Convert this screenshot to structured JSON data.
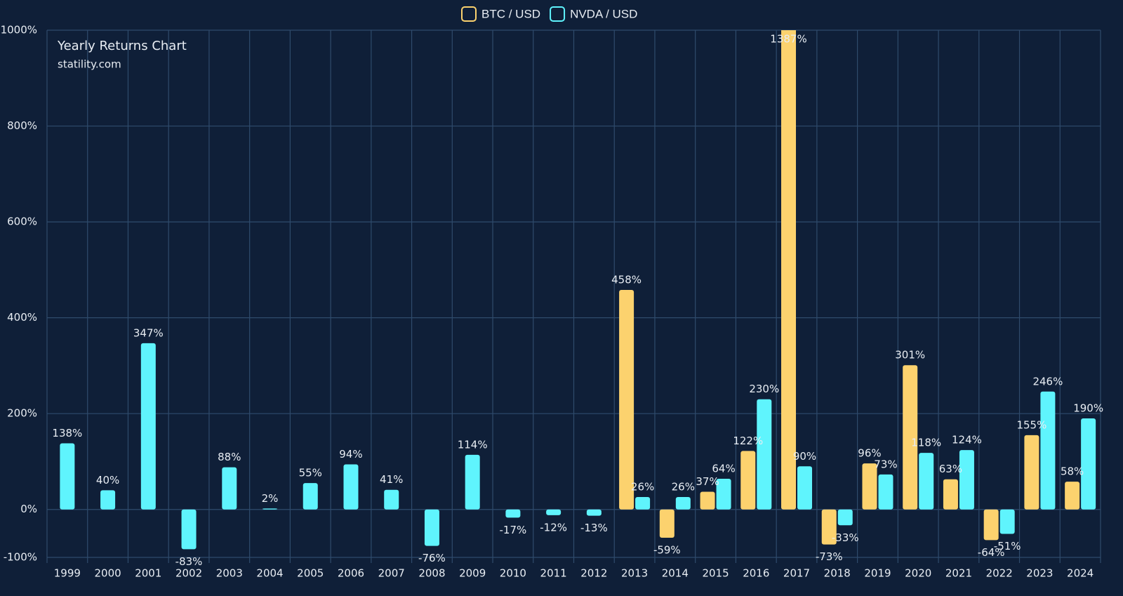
{
  "chart_data": {
    "type": "bar",
    "title": "Yearly Returns Chart",
    "subtitle": "statility.com",
    "categories": [
      "1999",
      "2000",
      "2001",
      "2002",
      "2003",
      "2004",
      "2005",
      "2006",
      "2007",
      "2008",
      "2009",
      "2010",
      "2011",
      "2012",
      "2013",
      "2014",
      "2015",
      "2016",
      "2017",
      "2018",
      "2019",
      "2020",
      "2021",
      "2022",
      "2023",
      "2024"
    ],
    "series": [
      {
        "name": "BTC / USD",
        "color": "#fcd26e",
        "values": [
          null,
          null,
          null,
          null,
          null,
          null,
          null,
          null,
          null,
          null,
          null,
          null,
          null,
          null,
          458,
          -59,
          37,
          122,
          1387,
          -73,
          96,
          301,
          63,
          -64,
          155,
          58
        ],
        "value_labels": [
          null,
          null,
          null,
          null,
          null,
          null,
          null,
          null,
          null,
          null,
          null,
          null,
          null,
          null,
          "458%",
          "-59%",
          "37%",
          "122%",
          "1387%",
          "-73%",
          "96%",
          "301%",
          "63%",
          "-64%",
          "155%",
          "58%"
        ]
      },
      {
        "name": "NVDA / USD",
        "color": "#5ff4fd",
        "values": [
          138,
          40,
          347,
          -83,
          88,
          2,
          55,
          94,
          41,
          -76,
          114,
          -17,
          -12,
          -13,
          26,
          26,
          64,
          230,
          90,
          -33,
          73,
          118,
          124,
          -51,
          246,
          190
        ],
        "value_labels": [
          "138%",
          "40%",
          "347%",
          "-83%",
          "88%",
          "2%",
          "55%",
          "94%",
          "41%",
          "-76%",
          "114%",
          "-17%",
          "-12%",
          "-13%",
          "26%",
          "26%",
          "64%",
          "230%",
          "90%",
          "-33%",
          "73%",
          "118%",
          "124%",
          "-51%",
          "246%",
          "190%"
        ]
      }
    ],
    "ylim": [
      -100,
      1000
    ],
    "yticks": [
      {
        "value": -100,
        "label": "-100%"
      },
      {
        "value": 0,
        "label": "0%"
      },
      {
        "value": 200,
        "label": "200%"
      },
      {
        "value": 400,
        "label": "400%"
      },
      {
        "value": 600,
        "label": "600%"
      },
      {
        "value": 800,
        "label": "800%"
      },
      {
        "value": 1000,
        "label": "1000%"
      }
    ],
    "grid": true,
    "legend": "top"
  }
}
